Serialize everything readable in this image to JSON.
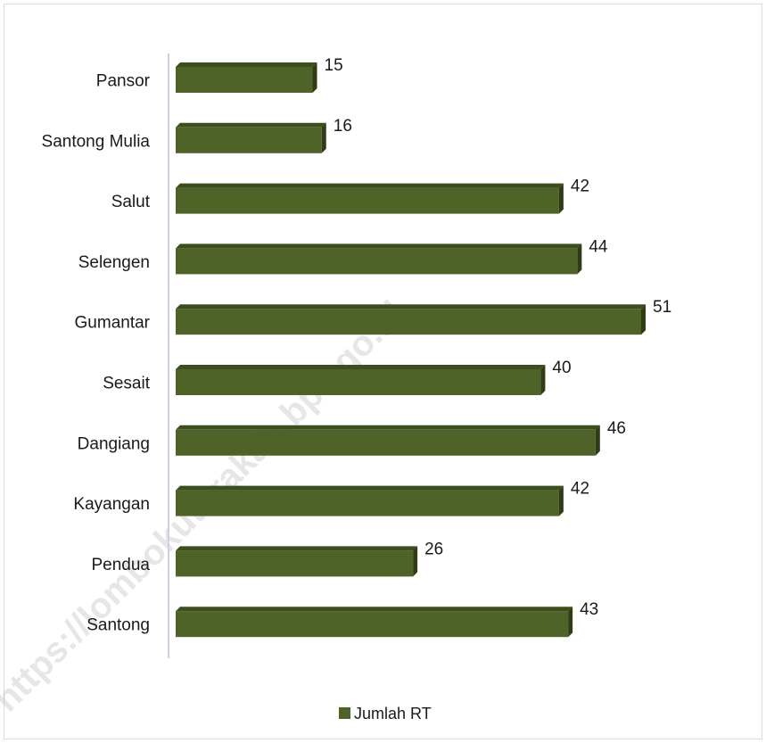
{
  "chart_data": {
    "type": "bar",
    "orientation": "horizontal",
    "categories": [
      "Pansor",
      "Santong Mulia",
      "Salut",
      "Selengen",
      "Gumantar",
      "Sesait",
      "Dangiang",
      "Kayangan",
      "Pendua",
      "Santong"
    ],
    "series": [
      {
        "name": "Jumlah RT",
        "values": [
          15,
          16,
          42,
          44,
          51,
          40,
          46,
          42,
          26,
          43
        ],
        "color": "#4f6228"
      }
    ],
    "legend_position": "bottom",
    "grid": false,
    "xlim": [
      0,
      55
    ]
  },
  "watermark": "https://lombokutarakab.bps.go.id",
  "colors": {
    "bar_front": "#4f6228",
    "bar_top": "#3d4e1e",
    "bar_side": "#2f3c16",
    "axis": "#c9d3e0"
  }
}
